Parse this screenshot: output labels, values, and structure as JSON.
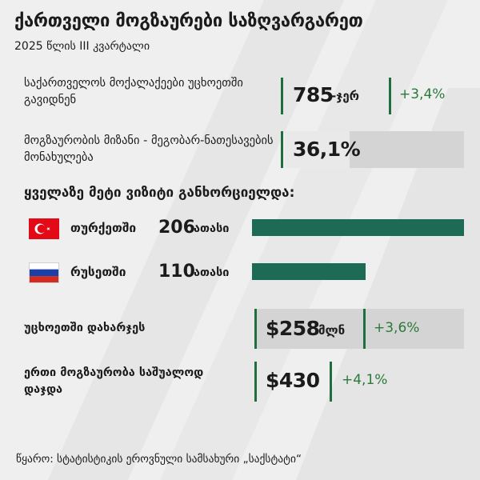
{
  "header": {
    "title": "ქართველი მოგზაურები საზღვარგარეთ",
    "subtitle": "2025 წლის III კვარტალი"
  },
  "stats": {
    "citizens": {
      "label": "საქართველოს მოქალაქეები უცხოეთში გავიდნენ",
      "value": "785",
      "unit": "-ჯერ",
      "change": "+3,4%"
    },
    "purpose": {
      "label": "მოგზაურობის მიზანი - მეგობარ-ნათესავების მონახულება",
      "value": "36,1%",
      "share": 36.1
    },
    "spending": {
      "label": "უცხოეთში დახარჯეს",
      "value": "$258",
      "unit": "მლნ",
      "change": "+3,6%"
    },
    "avg_trip": {
      "label": "ერთი მოგზაურობა საშუალოდ დაჯდა",
      "value": "$430",
      "change": "+4,1%"
    }
  },
  "section_title": "ყველაზე მეტი ვიზიტი განხორციელდა:",
  "chart_data": {
    "type": "bar",
    "categories": [
      "თურქეთში",
      "რუსეთში"
    ],
    "values": [
      206,
      110
    ],
    "value_labels": [
      "206",
      "110"
    ],
    "unit_label": "ათასი",
    "flags": [
      "turkey-flag",
      "russia-flag"
    ],
    "colors": {
      "bar": "#1e6b55"
    }
  },
  "footer": {
    "source": "წყარო: სტატისტიკის ეროვნული სამსახური „საქსტატი“"
  },
  "colors": {
    "accent_green": "#1f6e3e",
    "positive_change": "#2a7a3a",
    "background": "#efefef"
  }
}
